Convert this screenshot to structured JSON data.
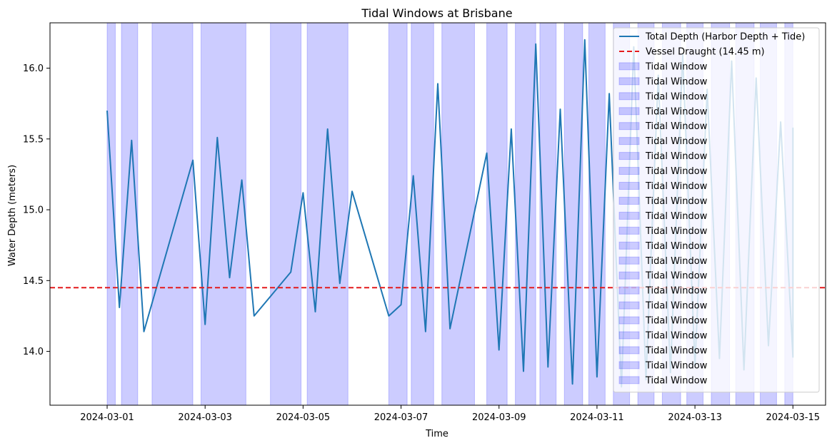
{
  "chart_data": {
    "type": "line",
    "title": "Tidal Windows at Brisbane",
    "xlabel": "Time",
    "ylabel": "Water Depth (meters)",
    "xlim": [
      "2024-02-28T20:00",
      "2024-03-15T16:00"
    ],
    "ylim": [
      13.62,
      16.32
    ],
    "grid": false,
    "legend_position": "upper right",
    "x_ticks": [
      "2024-03-01",
      "2024-03-03",
      "2024-03-05",
      "2024-03-07",
      "2024-03-09",
      "2024-03-11",
      "2024-03-13",
      "2024-03-15"
    ],
    "y_ticks": [
      14.0,
      14.5,
      15.0,
      15.5,
      16.0
    ],
    "series": [
      {
        "name": "Total Depth (Harbor Depth + Tide)",
        "color": "#1f77b4",
        "x": [
          "2024-03-01T00:00",
          "2024-03-01T06:00",
          "2024-03-01T12:00",
          "2024-03-01T18:00",
          "2024-03-02T18:00",
          "2024-03-03T00:00",
          "2024-03-03T06:00",
          "2024-03-03T12:00",
          "2024-03-03T18:00",
          "2024-03-04T00:00",
          "2024-03-04T18:00",
          "2024-03-05T00:00",
          "2024-03-05T06:00",
          "2024-03-05T12:00",
          "2024-03-05T18:00",
          "2024-03-06T00:00",
          "2024-03-06T18:00",
          "2024-03-07T00:00",
          "2024-03-07T06:00",
          "2024-03-07T12:00",
          "2024-03-07T18:00",
          "2024-03-08T00:00",
          "2024-03-08T18:00",
          "2024-03-09T00:00",
          "2024-03-09T06:00",
          "2024-03-09T12:00",
          "2024-03-09T18:00",
          "2024-03-10T00:00",
          "2024-03-10T06:00",
          "2024-03-10T12:00",
          "2024-03-10T18:00",
          "2024-03-11T00:00",
          "2024-03-11T06:00",
          "2024-03-11T12:00",
          "2024-03-11T18:00",
          "2024-03-12T00:00",
          "2024-03-12T06:00",
          "2024-03-12T12:00",
          "2024-03-12T18:00",
          "2024-03-13T00:00",
          "2024-03-13T06:00",
          "2024-03-13T12:00",
          "2024-03-13T18:00",
          "2024-03-14T00:00",
          "2024-03-14T06:00",
          "2024-03-14T12:00",
          "2024-03-14T18:00",
          "2024-03-15T00:00"
        ],
        "values": [
          15.7,
          14.31,
          15.49,
          14.14,
          15.35,
          14.19,
          15.51,
          14.52,
          15.21,
          14.25,
          14.56,
          15.12,
          14.28,
          15.57,
          14.48,
          15.13,
          14.25,
          14.33,
          15.24,
          14.14,
          15.89,
          14.16,
          15.4,
          14.01,
          15.57,
          13.86,
          16.17,
          13.89,
          15.71,
          13.77,
          16.2,
          13.82,
          15.82,
          13.75,
          16.15,
          13.8,
          15.95,
          13.85,
          16.1,
          13.9,
          15.85,
          13.95,
          16.05,
          13.87,
          15.93,
          14.04,
          15.62,
          13.96
        ],
        "extra_values": [
          15.58
        ]
      },
      {
        "name": "Vessel Draught (14.45 m)",
        "color": "#e41a1c",
        "y": 14.45
      }
    ],
    "tidal_window_label": "Tidal Window",
    "tidal_window_color": "#0000ff",
    "tidal_windows": [
      [
        "2024-03-01T00:00",
        "2024-03-01T04:00"
      ],
      [
        "2024-03-01T07:00",
        "2024-03-01T15:00"
      ],
      [
        "2024-03-01T22:00",
        "2024-03-02T18:00"
      ],
      [
        "2024-03-02T22:00",
        "2024-03-03T20:00"
      ],
      [
        "2024-03-04T08:00",
        "2024-03-04T23:00"
      ],
      [
        "2024-03-05T02:00",
        "2024-03-05T22:00"
      ],
      [
        "2024-03-06T18:00",
        "2024-03-07T03:00"
      ],
      [
        "2024-03-07T05:00",
        "2024-03-07T16:00"
      ],
      [
        "2024-03-07T20:00",
        "2024-03-08T12:00"
      ],
      [
        "2024-03-08T18:00",
        "2024-03-09T04:00"
      ],
      [
        "2024-03-09T08:00",
        "2024-03-09T18:00"
      ],
      [
        "2024-03-09T20:00",
        "2024-03-10T04:00"
      ],
      [
        "2024-03-10T08:00",
        "2024-03-10T17:00"
      ],
      [
        "2024-03-10T20:00",
        "2024-03-11T04:00"
      ],
      [
        "2024-03-11T08:00",
        "2024-03-11T16:00"
      ],
      [
        "2024-03-11T20:00",
        "2024-03-12T04:00"
      ],
      [
        "2024-03-12T08:00",
        "2024-03-12T17:00"
      ],
      [
        "2024-03-12T20:00",
        "2024-03-13T04:00"
      ],
      [
        "2024-03-13T08:00",
        "2024-03-13T17:00"
      ],
      [
        "2024-03-13T20:00",
        "2024-03-14T05:00"
      ],
      [
        "2024-03-14T08:00",
        "2024-03-14T16:00"
      ],
      [
        "2024-03-14T20:00",
        "2024-03-15T00:00"
      ]
    ]
  }
}
